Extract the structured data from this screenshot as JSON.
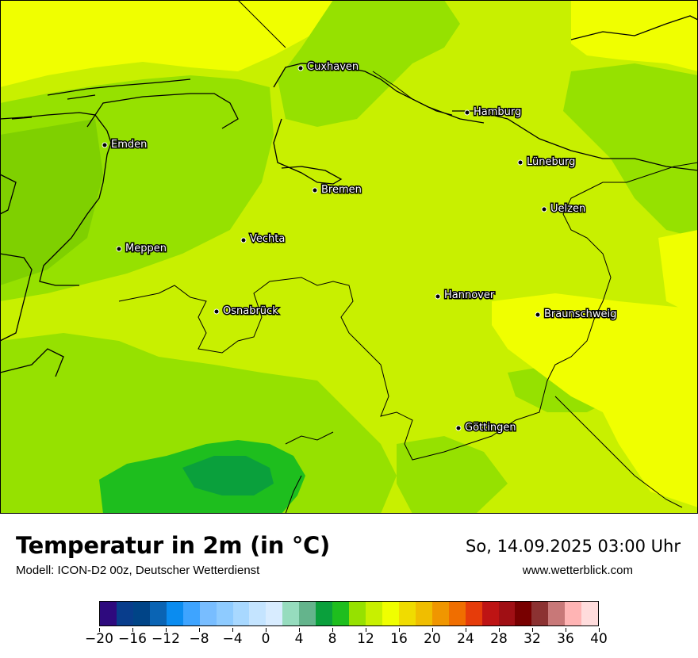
{
  "header": {
    "title": "Temperatur in 2m (in °C)",
    "subtitle": "Modell: ICON-D2 00z, Deutscher Wetterdienst",
    "datetime": "So, 14.09.2025 03:00 Uhr",
    "website": "www.wetterblick.com"
  },
  "cities": [
    {
      "name": "Cuxhaven"
    },
    {
      "name": "Hamburg"
    },
    {
      "name": "Emden"
    },
    {
      "name": "Lüneburg"
    },
    {
      "name": "Bremen"
    },
    {
      "name": "Uelzen"
    },
    {
      "name": "Vechta"
    },
    {
      "name": "Meppen"
    },
    {
      "name": "Hannover"
    },
    {
      "name": "Osnabrück"
    },
    {
      "name": "Braunschweig"
    },
    {
      "name": "Göttingen"
    }
  ],
  "legend": {
    "tick_labels": [
      "−20",
      "−16",
      "−12",
      "−8",
      "−4",
      "0",
      "4",
      "8",
      "12",
      "16",
      "20",
      "24",
      "28",
      "32",
      "36",
      "40"
    ],
    "colors": [
      "#2e0a7e",
      "#083d8c",
      "#004487",
      "#0a64b4",
      "#0a8cf0",
      "#3ea4ff",
      "#78bdff",
      "#8ecbff",
      "#a8d8ff",
      "#c4e4ff",
      "#d8ecff",
      "#96dcbe",
      "#64b48c",
      "#0aa03c",
      "#1ebe1e",
      "#96e100",
      "#c8f000",
      "#f0ff00",
      "#f0dc00",
      "#f0be00",
      "#f09600",
      "#f06e00",
      "#e63c0a",
      "#be1414",
      "#a00f14",
      "#780000",
      "#8c3232",
      "#c87878",
      "#ffb4b4",
      "#ffdcdc"
    ]
  }
}
